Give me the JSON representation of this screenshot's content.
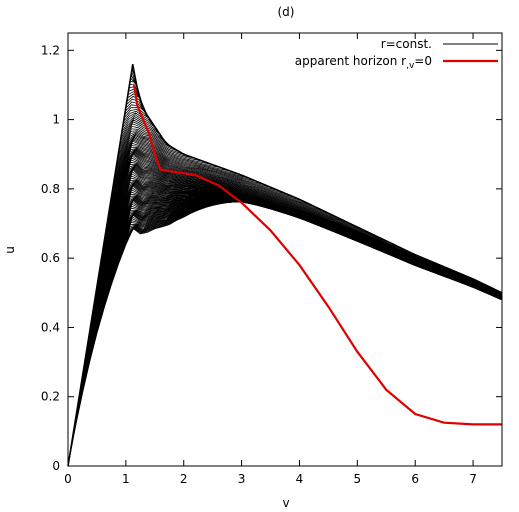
{
  "chart_data": {
    "type": "line",
    "title": "(d)",
    "xlabel": "v",
    "ylabel": "u",
    "xlim": [
      0,
      7.5
    ],
    "ylim": [
      0,
      1.25
    ],
    "x_ticks": [
      0,
      1,
      2,
      3,
      4,
      5,
      6,
      7
    ],
    "y_ticks": [
      0,
      0.2,
      0.4,
      0.6,
      0.8,
      1,
      1.2
    ],
    "x_tick_labels": [
      "0",
      "1",
      "2",
      "3",
      "4",
      "5",
      "6",
      "7"
    ],
    "y_tick_labels": [
      "0",
      "0.2",
      "0.4",
      "0.6",
      "0.8",
      "1",
      "1.2"
    ],
    "grid": false,
    "legend_position": "top-right",
    "colors": {
      "r_const": "#000000",
      "horizon": "#e00000"
    },
    "series": [
      {
        "name": "r=const.",
        "description_count": 120,
        "apex": [
          1.12,
          1.16
        ],
        "upper_envelope": [
          [
            1.12,
            1.16
          ],
          [
            1.2,
            1.09
          ],
          [
            1.3,
            1.03
          ],
          [
            1.5,
            0.98
          ],
          [
            1.7,
            0.93
          ],
          [
            2.0,
            0.9
          ],
          [
            2.5,
            0.87
          ],
          [
            3.0,
            0.84
          ],
          [
            4.0,
            0.77
          ],
          [
            5.0,
            0.69
          ],
          [
            6.0,
            0.61
          ],
          [
            7.0,
            0.54
          ],
          [
            7.5,
            0.5
          ]
        ]
      },
      {
        "name": "apparent horizon r,v=0",
        "points": [
          [
            1.14,
            1.1
          ],
          [
            1.2,
            1.04
          ],
          [
            1.3,
            1.0
          ],
          [
            1.4,
            0.96
          ],
          [
            1.5,
            0.9
          ],
          [
            1.6,
            0.855
          ],
          [
            1.8,
            0.85
          ],
          [
            2.2,
            0.84
          ],
          [
            2.6,
            0.81
          ],
          [
            3.0,
            0.76
          ],
          [
            3.5,
            0.68
          ],
          [
            4.0,
            0.58
          ],
          [
            4.5,
            0.46
          ],
          [
            5.0,
            0.33
          ],
          [
            5.5,
            0.22
          ],
          [
            6.0,
            0.15
          ],
          [
            6.5,
            0.125
          ],
          [
            7.0,
            0.12
          ],
          [
            7.5,
            0.12
          ]
        ]
      }
    ]
  },
  "legend": {
    "entry1": "r=const.",
    "entry2": "apparent horizon r",
    "entry2_sub": ",v",
    "entry2_tail": "=0"
  }
}
